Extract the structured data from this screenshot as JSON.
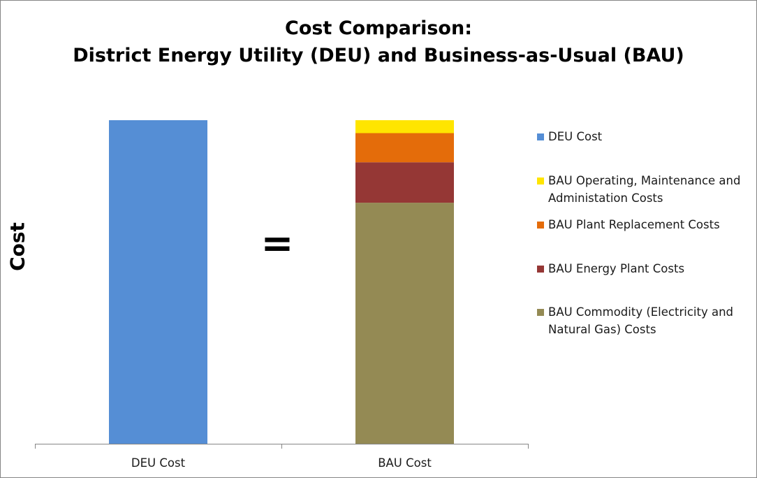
{
  "chart_data": {
    "type": "bar",
    "stacked": true,
    "title_lines": [
      "Cost Comparison:",
      "District Energy Utility (DEU) and Business-as-Usual (BAU)"
    ],
    "xlabel": "",
    "ylabel": "Cost",
    "categories": [
      "DEU Cost",
      "BAU Cost"
    ],
    "ylim": [
      0,
      100
    ],
    "y_tick_labels_shown": false,
    "grid": false,
    "legend_position": "right",
    "annotation": "=",
    "series": [
      {
        "name": "DEU Cost",
        "color": "#558ED5",
        "values": [
          100,
          0
        ]
      },
      {
        "name": "BAU Commodity (Electricity and Natural Gas) Costs",
        "color": "#948A54",
        "values": [
          0,
          74.5
        ]
      },
      {
        "name": "BAU Energy Plant Costs",
        "color": "#953735",
        "values": [
          0,
          12.5
        ]
      },
      {
        "name": "BAU Plant Replacement Costs",
        "color": "#E46C0A",
        "values": [
          0,
          9
        ]
      },
      {
        "name": "BAU Operating, Maintenance and Administation Costs",
        "color": "#FFE500",
        "values": [
          0,
          4
        ]
      }
    ],
    "legend_order": [
      "DEU Cost",
      "BAU Operating, Maintenance and Administation Costs",
      "BAU Plant Replacement Costs",
      "BAU Energy Plant Costs",
      "BAU Commodity (Electricity and Natural Gas) Costs"
    ]
  },
  "legend_lines": [
    [
      "DEU Cost"
    ],
    [
      "BAU Operating, Maintenance and",
      "Administation Costs"
    ],
    [
      "BAU Plant Replacement Costs"
    ],
    [
      "BAU Energy Plant Costs"
    ],
    [
      "BAU Commodity (Electricity and",
      "Natural Gas) Costs"
    ]
  ],
  "axis_color": "#868686"
}
